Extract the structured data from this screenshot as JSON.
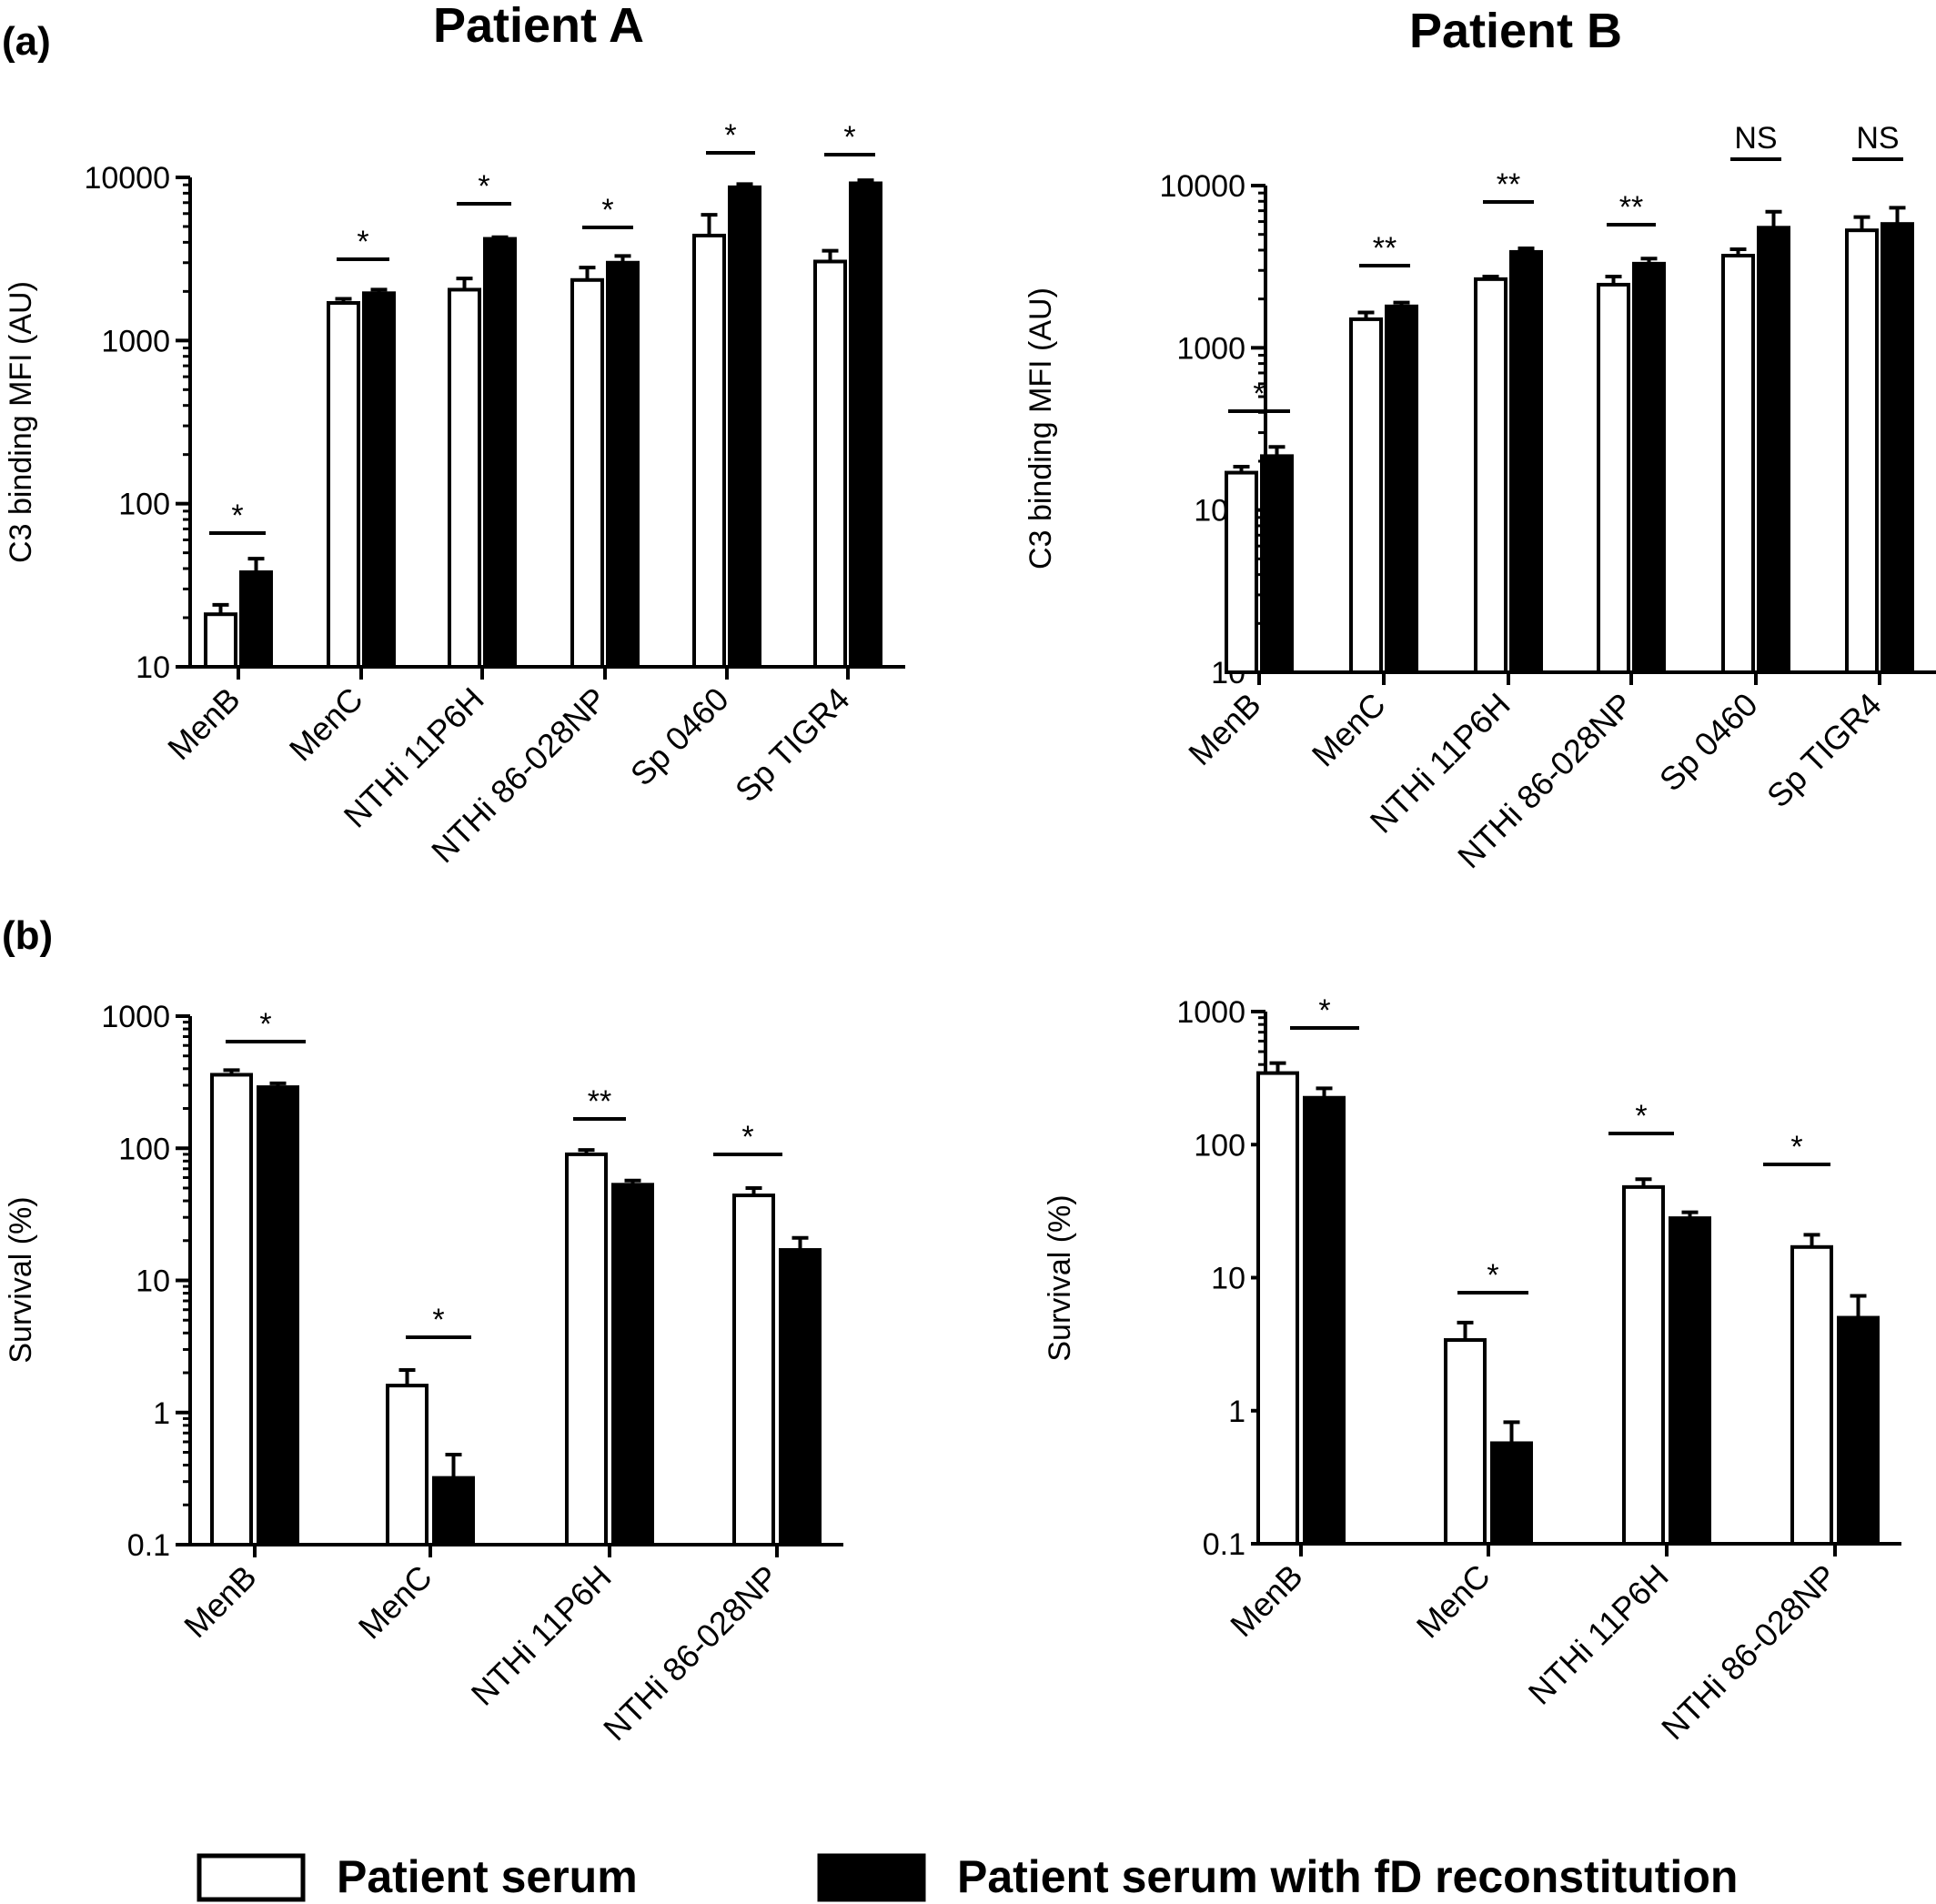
{
  "panel_labels": {
    "a": "(a)",
    "b": "(b)"
  },
  "titles": {
    "patient_a": "Patient A",
    "patient_b": "Patient B"
  },
  "legend": {
    "open_label": "Patient serum",
    "filled_label": "Patient serum with fD reconstitution"
  },
  "chart_data": [
    {
      "id": "a_patientA",
      "type": "bar",
      "scale": "log",
      "title": "Patient A",
      "ylabel": "C3 binding MFI (AU)",
      "ylim": [
        10,
        10000
      ],
      "yticks": [
        "10",
        "100",
        "1000",
        "10000"
      ],
      "categories": [
        "MenB",
        "MenC",
        "NTHi 11P6H",
        "NTHi 86-028NP",
        "Sp 0460",
        "Sp TIGR4"
      ],
      "series": [
        {
          "name": "Patient serum",
          "fill": "#ffffff",
          "values": [
            21,
            1700,
            2050,
            2350,
            4400,
            3050
          ],
          "errors": [
            24,
            1800,
            2400,
            2800,
            5900,
            3550
          ]
        },
        {
          "name": "Patient serum with fD reconstitution",
          "fill": "#000000",
          "values": [
            38,
            1950,
            4200,
            3000,
            8700,
            9200
          ],
          "errors": [
            46,
            2050,
            4300,
            3300,
            9100,
            9600
          ]
        }
      ],
      "significance": [
        "*",
        "*",
        "*",
        "*",
        "*",
        "*"
      ]
    },
    {
      "id": "a_patientB",
      "type": "bar",
      "scale": "log",
      "title": "Patient B",
      "ylabel": "C3 binding MFI (AU)",
      "ylim": [
        10,
        10000
      ],
      "yticks": [
        "10",
        "100",
        "1000",
        "10000"
      ],
      "categories": [
        "MenB",
        "MenC",
        "NTHi 11P6H",
        "NTHi 86-028NP",
        "Sp 0460",
        "Sp TIGR4"
      ],
      "series": [
        {
          "name": "Patient serum",
          "fill": "#ffffff",
          "values": [
            170,
            1500,
            2650,
            2450,
            3700,
            5300
          ],
          "errors": [
            185,
            1650,
            2750,
            2750,
            4050,
            6400
          ]
        },
        {
          "name": "Patient serum with fD reconstitution",
          "fill": "#000000",
          "values": [
            215,
            1800,
            3900,
            3300,
            5500,
            5800
          ],
          "errors": [
            245,
            1900,
            4100,
            3550,
            6900,
            7300
          ]
        }
      ],
      "significance": [
        "*",
        "**",
        "**",
        "**",
        "NS",
        "NS"
      ]
    },
    {
      "id": "b_patientA",
      "type": "bar",
      "scale": "log",
      "ylabel": "Survival (%)",
      "ylim": [
        0.1,
        1000
      ],
      "yticks": [
        "0.1",
        "1",
        "10",
        "100",
        "1000"
      ],
      "categories": [
        "MenB",
        "MenC",
        "NTHi 11P6H",
        "NTHi 86-028NP"
      ],
      "series": [
        {
          "name": "Patient serum",
          "fill": "#ffffff",
          "values": [
            360,
            1.6,
            90,
            44
          ],
          "errors": [
            390,
            2.1,
            97,
            50
          ]
        },
        {
          "name": "Patient serum with fD reconstitution",
          "fill": "#000000",
          "values": [
            290,
            0.32,
            53,
            17
          ],
          "errors": [
            310,
            0.48,
            57,
            21
          ]
        }
      ],
      "significance": [
        "*",
        "*",
        "**",
        "*"
      ]
    },
    {
      "id": "b_patientB",
      "type": "bar",
      "scale": "log",
      "ylabel": "Survival (%)",
      "ylim": [
        0.1,
        1000
      ],
      "yticks": [
        "0.1",
        "1",
        "10",
        "100",
        "1000"
      ],
      "categories": [
        "MenB",
        "MenC",
        "NTHi 11P6H",
        "NTHi 86-028NP"
      ],
      "series": [
        {
          "name": "Patient serum",
          "fill": "#ffffff",
          "values": [
            345,
            3.4,
            48,
            17
          ],
          "errors": [
            410,
            4.6,
            55,
            21
          ]
        },
        {
          "name": "Patient serum with fD reconstitution",
          "fill": "#000000",
          "values": [
            225,
            0.57,
            28,
            5
          ],
          "errors": [
            265,
            0.82,
            31,
            7.3
          ]
        }
      ],
      "significance": [
        "*",
        "*",
        "*",
        "*"
      ]
    }
  ]
}
